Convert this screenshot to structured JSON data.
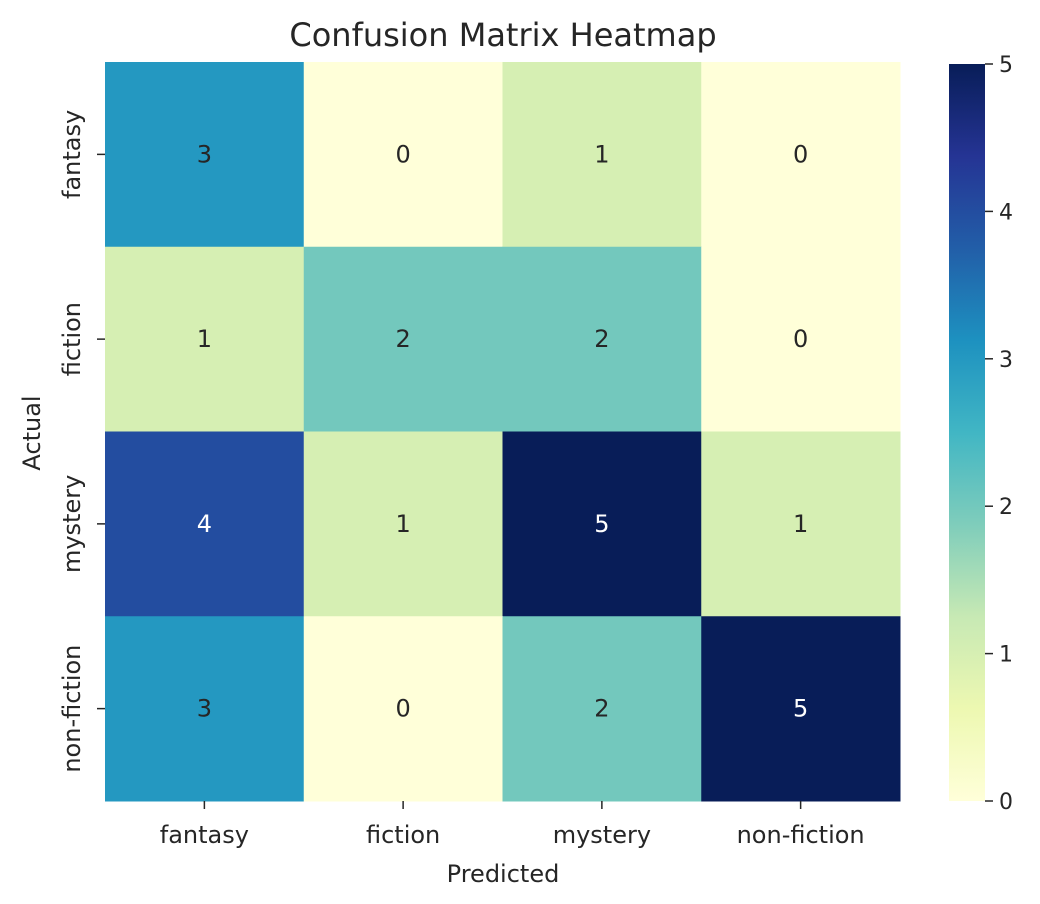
{
  "chart_data": {
    "type": "heatmap",
    "title": "Confusion Matrix Heatmap",
    "xlabel": "Predicted",
    "ylabel": "Actual",
    "x_categories": [
      "fantasy",
      "fiction",
      "mystery",
      "non-fiction"
    ],
    "y_categories": [
      "fantasy",
      "fiction",
      "mystery",
      "non-fiction"
    ],
    "values": [
      [
        3,
        0,
        1,
        0
      ],
      [
        1,
        2,
        2,
        0
      ],
      [
        4,
        1,
        5,
        1
      ],
      [
        3,
        0,
        2,
        5
      ]
    ],
    "colormap": "YlGnBu",
    "annotated": true,
    "value_range": [
      0,
      5
    ],
    "colorbar_ticks": [
      0,
      1,
      2,
      3,
      4,
      5
    ],
    "grid": false
  }
}
